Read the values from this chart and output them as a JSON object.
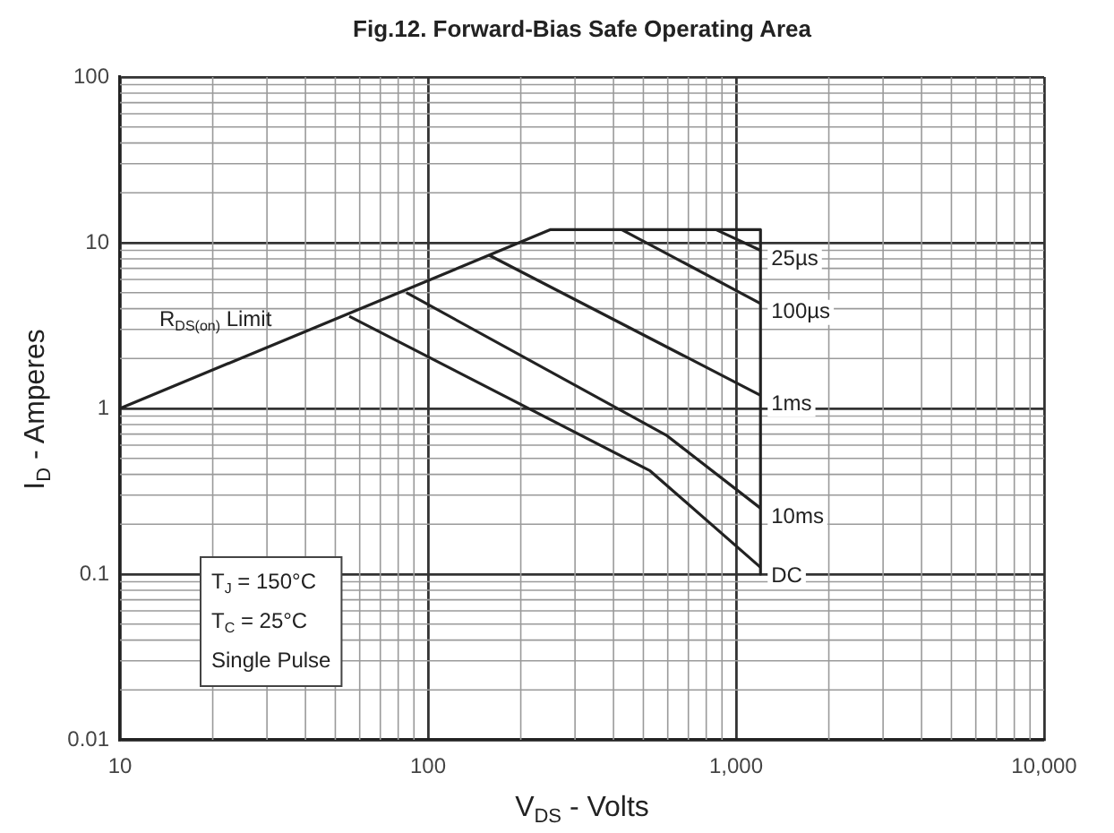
{
  "chart_data": {
    "type": "line",
    "title": "Fig.12. Forward-Bias Safe Operating Area",
    "xlabel": "V$_{DS}$ - Volts",
    "ylabel": "I$_{D}$ - Amperes",
    "log": "xy",
    "grid": true,
    "legend": false,
    "marker": "none",
    "line_style": "solid",
    "xlim": [
      10,
      10000
    ],
    "ylim": [
      0.01,
      100
    ],
    "xticks": [
      10,
      100,
      {
        "value": 1000,
        "label": "1,000"
      },
      {
        "value": 10000,
        "label": "10,000"
      }
    ],
    "yticks": [
      0.01,
      0.1,
      1,
      10,
      100
    ],
    "series": [
      {
        "name": "R$_{DS(on)}$ Limit",
        "color": "#222222",
        "x": [
          10,
          250,
          1200,
          1200
        ],
        "values": [
          1,
          12,
          12,
          0.1
        ]
      },
      {
        "name": "25µs",
        "color": "#222222",
        "x": [
          860,
          1200
        ],
        "values": [
          12,
          9
        ]
      },
      {
        "name": "100µs",
        "color": "#222222",
        "x": [
          425,
          1200
        ],
        "values": [
          12,
          4.3
        ]
      },
      {
        "name": "1ms",
        "color": "#222222",
        "x": [
          158,
          1200
        ],
        "values": [
          8.4,
          1.2
        ]
      },
      {
        "name": "10ms",
        "color": "#222222",
        "x": [
          85,
          593,
          1200
        ],
        "values": [
          5,
          0.69,
          0.25
        ]
      },
      {
        "name": "DC",
        "color": "#222222",
        "x": [
          55.5,
          526,
          1200
        ],
        "values": [
          3.6,
          0.42,
          0.11
        ]
      }
    ],
    "annotations": [
      "T$_{J}$ = 150°C",
      "T$_{C}$ = 25°C",
      "Single Pulse"
    ]
  }
}
